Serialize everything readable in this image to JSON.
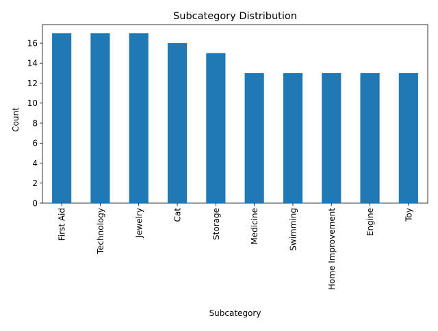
{
  "chart_data": {
    "type": "bar",
    "title": "Subcategory Distribution",
    "xlabel": "Subcategory",
    "ylabel": "Count",
    "categories": [
      "First Aid",
      "Technology",
      "Jewelry",
      "Cat",
      "Storage",
      "Medicine",
      "Swimming",
      "Home Improvement",
      "Engine",
      "Toy"
    ],
    "values": [
      17,
      17,
      17,
      16,
      15,
      13,
      13,
      13,
      13,
      13
    ],
    "ylim": [
      0,
      17.85
    ],
    "yticks": [
      0,
      2,
      4,
      6,
      8,
      10,
      12,
      14,
      16
    ],
    "bar_color": "#1f77b4",
    "grid": false,
    "legend": "none"
  }
}
